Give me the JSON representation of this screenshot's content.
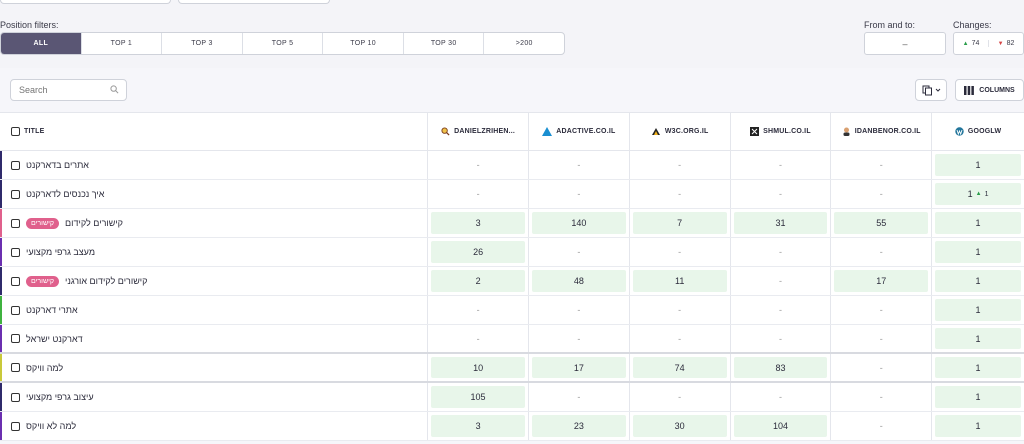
{
  "filters": {
    "label": "Position filters:",
    "options": [
      "ALL",
      "TOP 1",
      "TOP 3",
      "TOP 5",
      "TOP 10",
      "TOP 30",
      ">200"
    ],
    "active": "ALL"
  },
  "from_to": {
    "label": "From and to:",
    "value": "–"
  },
  "changes": {
    "label": "Changes:",
    "up_value": "74",
    "down_value": "82"
  },
  "toolbar": {
    "search_placeholder": "Search",
    "columns_label": "COLUMNS"
  },
  "table": {
    "title_header": "TITLE",
    "sites": [
      {
        "name": "DANIELZRIHEN...",
        "icon": "magnifier-icon"
      },
      {
        "name": "ADACTIVE.CO.IL",
        "icon": "triangle-logo-icon"
      },
      {
        "name": "W3C.ORG.IL",
        "icon": "w3c-logo-icon"
      },
      {
        "name": "SHMUL.CO.IL",
        "icon": "shmul-logo-icon"
      },
      {
        "name": "IDANBENOR.CO.IL",
        "icon": "avatar-icon"
      },
      {
        "name": "GOOGLW",
        "icon": "wordpress-icon"
      }
    ],
    "rows": [
      {
        "title": "אתרים בדארקנט",
        "badge": "",
        "stripe": "#2f2a6b",
        "values": [
          "-",
          "-",
          "-",
          "-",
          "-",
          "1"
        ],
        "delta": ""
      },
      {
        "title": "איך נכנסים לדארקנט",
        "badge": "",
        "stripe": "#2f2a6b",
        "values": [
          "-",
          "-",
          "-",
          "-",
          "-",
          "1"
        ],
        "delta": "1"
      },
      {
        "title": "קישורים לקידום",
        "badge": "קישורים",
        "stripe": "#e0608c",
        "values": [
          "3",
          "140",
          "7",
          "31",
          "55",
          "1"
        ],
        "delta": ""
      },
      {
        "title": "מעצב גרפי מקצועי",
        "badge": "",
        "stripe": "#6b2fb0",
        "values": [
          "26",
          "-",
          "-",
          "-",
          "-",
          "1"
        ],
        "delta": ""
      },
      {
        "title": "קישורים לקידום אורגני",
        "badge": "קישורים",
        "stripe": "#2f2a6b",
        "values": [
          "2",
          "48",
          "11",
          "-",
          "17",
          "1"
        ],
        "delta": ""
      },
      {
        "title": "אתרי דארקנט",
        "badge": "",
        "stripe": "#3fb23f",
        "values": [
          "-",
          "-",
          "-",
          "-",
          "-",
          "1"
        ],
        "delta": ""
      },
      {
        "title": "דארקנט ישראל",
        "badge": "",
        "stripe": "#6b2fb0",
        "values": [
          "-",
          "-",
          "-",
          "-",
          "-",
          "1"
        ],
        "delta": ""
      },
      {
        "title": "למה וויקס",
        "badge": "",
        "stripe": "#c9c93a",
        "values": [
          "10",
          "17",
          "74",
          "83",
          "-",
          "1"
        ],
        "delta": ""
      },
      {
        "title": "עיצוב גרפי מקצועי",
        "badge": "",
        "stripe": "#2f2a6b",
        "values": [
          "105",
          "-",
          "-",
          "-",
          "-",
          "1"
        ],
        "delta": ""
      },
      {
        "title": "למה לא וויקס",
        "badge": "",
        "stripe": "#6b2fb0",
        "values": [
          "3",
          "23",
          "30",
          "104",
          "-",
          "1"
        ],
        "delta": ""
      }
    ]
  }
}
